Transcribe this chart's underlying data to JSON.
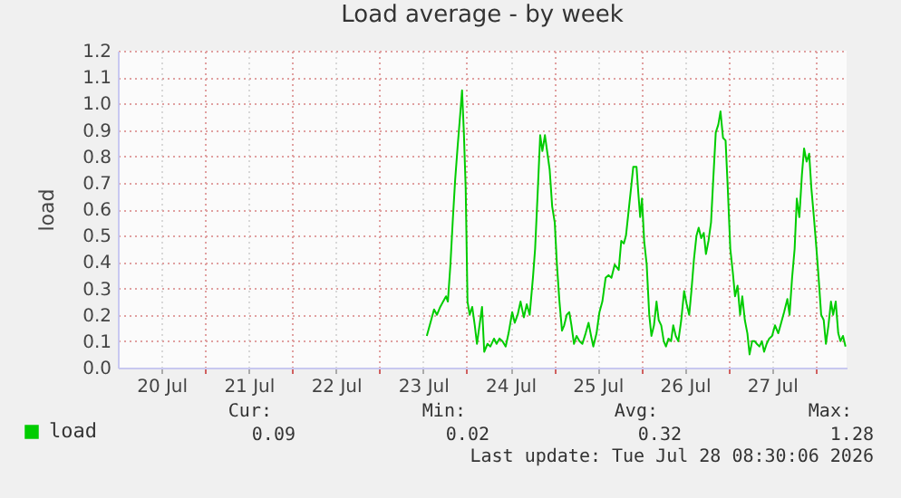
{
  "chart_data": {
    "type": "line",
    "title": "Load average - by week",
    "ylabel": "load",
    "xlim": [
      "2026-07-20T00:00",
      "2026-07-28T08:30"
    ],
    "xticks": [
      {
        "value": "2026-07-20T12:00",
        "label": "20 Jul"
      },
      {
        "value": "2026-07-21T00:00",
        "label": null
      },
      {
        "value": "2026-07-21T12:00",
        "label": "21 Jul"
      },
      {
        "value": "2026-07-22T00:00",
        "label": null
      },
      {
        "value": "2026-07-22T12:00",
        "label": "22 Jul"
      },
      {
        "value": "2026-07-23T00:00",
        "label": null
      },
      {
        "value": "2026-07-23T12:00",
        "label": "23 Jul"
      },
      {
        "value": "2026-07-24T00:00",
        "label": null
      },
      {
        "value": "2026-07-24T12:00",
        "label": "24 Jul"
      },
      {
        "value": "2026-07-25T00:00",
        "label": null
      },
      {
        "value": "2026-07-25T12:00",
        "label": "25 Jul"
      },
      {
        "value": "2026-07-26T00:00",
        "label": null
      },
      {
        "value": "2026-07-26T12:00",
        "label": "26 Jul"
      },
      {
        "value": "2026-07-27T00:00",
        "label": null
      },
      {
        "value": "2026-07-27T12:00",
        "label": "27 Jul"
      },
      {
        "value": "2026-07-28T00:00",
        "label": null
      }
    ],
    "ylim": [
      0,
      1.2
    ],
    "yticks": [
      {
        "value": 0,
        "label": "0.0"
      },
      0.1,
      0.2,
      0.3,
      0.4,
      0.5,
      0.6,
      0.7,
      0.8,
      0.9,
      {
        "value": 1,
        "label": "1.0"
      },
      1.1,
      1.2
    ],
    "grid": true,
    "legend": "bottom left",
    "marker": "none",
    "line_style": "solid",
    "series": [
      {
        "name": "load",
        "color": "#00cc00",
        "x": [
          "2026-07-23T13:00",
          "2026-07-23T14:12",
          "2026-07-23T15:00",
          "2026-07-23T15:48",
          "2026-07-23T16:42",
          "2026-07-23T17:30",
          "2026-07-23T18:18",
          "2026-07-23T18:48",
          "2026-07-23T19:30",
          "2026-07-23T20:12",
          "2026-07-23T20:48",
          "2026-07-23T21:30",
          "2026-07-23T22:12",
          "2026-07-23T22:42",
          "2026-07-23T23:12",
          "2026-07-23T23:42",
          "2026-07-24T00:12",
          "2026-07-24T00:48",
          "2026-07-24T01:30",
          "2026-07-24T02:12",
          "2026-07-24T02:48",
          "2026-07-24T03:30",
          "2026-07-24T04:12",
          "2026-07-24T04:48",
          "2026-07-24T05:42",
          "2026-07-24T06:30",
          "2026-07-24T07:30",
          "2026-07-24T08:12",
          "2026-07-24T09:00",
          "2026-07-24T09:48",
          "2026-07-24T10:42",
          "2026-07-24T11:30",
          "2026-07-24T12:30",
          "2026-07-24T13:12",
          "2026-07-24T14:00",
          "2026-07-24T14:48",
          "2026-07-24T15:42",
          "2026-07-24T16:30",
          "2026-07-24T17:18",
          "2026-07-24T18:12",
          "2026-07-24T18:48",
          "2026-07-24T19:30",
          "2026-07-24T20:12",
          "2026-07-24T20:48",
          "2026-07-24T21:30",
          "2026-07-24T22:12",
          "2026-07-24T22:48",
          "2026-07-24T23:30",
          "2026-07-25T00:12",
          "2026-07-25T00:48",
          "2026-07-25T01:30",
          "2026-07-25T02:12",
          "2026-07-25T02:48",
          "2026-07-25T03:30",
          "2026-07-25T04:12",
          "2026-07-25T04:48",
          "2026-07-25T05:30",
          "2026-07-25T06:12",
          "2026-07-25T07:00",
          "2026-07-25T07:48",
          "2026-07-25T08:42",
          "2026-07-25T09:30",
          "2026-07-25T10:12",
          "2026-07-25T10:48",
          "2026-07-25T11:42",
          "2026-07-25T12:30",
          "2026-07-25T13:18",
          "2026-07-25T14:12",
          "2026-07-25T15:00",
          "2026-07-25T15:48",
          "2026-07-25T16:42",
          "2026-07-25T17:48",
          "2026-07-25T18:30",
          "2026-07-25T19:12",
          "2026-07-25T19:48",
          "2026-07-25T20:30",
          "2026-07-25T21:12",
          "2026-07-25T21:48",
          "2026-07-25T22:42",
          "2026-07-25T23:12",
          "2026-07-25T23:42",
          "2026-07-26T00:12",
          "2026-07-26T00:48",
          "2026-07-26T01:30",
          "2026-07-26T02:12",
          "2026-07-26T02:48",
          "2026-07-26T03:30",
          "2026-07-26T04:12",
          "2026-07-26T04:48",
          "2026-07-26T05:30",
          "2026-07-26T06:12",
          "2026-07-26T06:48",
          "2026-07-26T07:30",
          "2026-07-26T08:12",
          "2026-07-26T08:48",
          "2026-07-26T09:30",
          "2026-07-26T10:12",
          "2026-07-26T11:00",
          "2026-07-26T11:48",
          "2026-07-26T12:30",
          "2026-07-26T13:12",
          "2026-07-26T13:48",
          "2026-07-26T14:30",
          "2026-07-26T15:12",
          "2026-07-26T15:48",
          "2026-07-26T16:30",
          "2026-07-26T17:12",
          "2026-07-26T17:48",
          "2026-07-26T18:30",
          "2026-07-26T19:12",
          "2026-07-26T19:48",
          "2026-07-26T20:30",
          "2026-07-26T21:12",
          "2026-07-26T21:48",
          "2026-07-26T22:30",
          "2026-07-26T23:12",
          "2026-07-26T23:48",
          "2026-07-27T00:30",
          "2026-07-27T01:12",
          "2026-07-27T01:48",
          "2026-07-27T02:30",
          "2026-07-27T03:12",
          "2026-07-27T03:48",
          "2026-07-27T04:30",
          "2026-07-27T05:12",
          "2026-07-27T05:48",
          "2026-07-27T06:30",
          "2026-07-27T07:12",
          "2026-07-27T07:48",
          "2026-07-27T08:30",
          "2026-07-27T09:12",
          "2026-07-27T09:48",
          "2026-07-27T10:30",
          "2026-07-27T11:12",
          "2026-07-27T12:00",
          "2026-07-27T12:48",
          "2026-07-27T13:42",
          "2026-07-27T14:30",
          "2026-07-27T15:18",
          "2026-07-27T16:12",
          "2026-07-27T16:48",
          "2026-07-27T17:30",
          "2026-07-27T18:12",
          "2026-07-27T18:48",
          "2026-07-27T19:30",
          "2026-07-27T20:12",
          "2026-07-27T20:48",
          "2026-07-27T21:30",
          "2026-07-27T22:12",
          "2026-07-27T22:48",
          "2026-07-27T23:30",
          "2026-07-28T00:12",
          "2026-07-28T00:48",
          "2026-07-28T01:30",
          "2026-07-28T02:12",
          "2026-07-28T02:48",
          "2026-07-28T03:30",
          "2026-07-28T04:12",
          "2026-07-28T04:48",
          "2026-07-28T05:30",
          "2026-07-28T06:12",
          "2026-07-28T06:48",
          "2026-07-28T07:30",
          "2026-07-28T08:12"
        ],
        "values": [
          0.12,
          0.18,
          0.22,
          0.2,
          0.23,
          0.25,
          0.27,
          0.25,
          0.39,
          0.57,
          0.71,
          0.84,
          0.96,
          1.05,
          0.89,
          0.68,
          0.25,
          0.2,
          0.23,
          0.16,
          0.09,
          0.16,
          0.23,
          0.06,
          0.09,
          0.08,
          0.11,
          0.09,
          0.11,
          0.1,
          0.08,
          0.13,
          0.21,
          0.17,
          0.2,
          0.25,
          0.19,
          0.24,
          0.2,
          0.34,
          0.45,
          0.66,
          0.88,
          0.82,
          0.88,
          0.81,
          0.75,
          0.61,
          0.55,
          0.39,
          0.25,
          0.14,
          0.16,
          0.2,
          0.21,
          0.16,
          0.09,
          0.12,
          0.1,
          0.09,
          0.13,
          0.17,
          0.12,
          0.08,
          0.13,
          0.21,
          0.25,
          0.34,
          0.35,
          0.34,
          0.39,
          0.37,
          0.48,
          0.47,
          0.5,
          0.59,
          0.68,
          0.76,
          0.76,
          0.66,
          0.57,
          0.64,
          0.48,
          0.39,
          0.2,
          0.12,
          0.16,
          0.25,
          0.18,
          0.16,
          0.1,
          0.08,
          0.11,
          0.1,
          0.16,
          0.12,
          0.1,
          0.18,
          0.29,
          0.24,
          0.2,
          0.29,
          0.41,
          0.5,
          0.53,
          0.49,
          0.51,
          0.43,
          0.48,
          0.55,
          0.71,
          0.89,
          0.92,
          0.97,
          0.87,
          0.86,
          0.68,
          0.45,
          0.36,
          0.27,
          0.31,
          0.2,
          0.27,
          0.18,
          0.13,
          0.05,
          0.1,
          0.1,
          0.09,
          0.08,
          0.1,
          0.06,
          0.09,
          0.11,
          0.12,
          0.16,
          0.13,
          0.17,
          0.21,
          0.26,
          0.2,
          0.34,
          0.45,
          0.64,
          0.57,
          0.73,
          0.83,
          0.78,
          0.81,
          0.68,
          0.57,
          0.45,
          0.34,
          0.2,
          0.18,
          0.09,
          0.16,
          0.25,
          0.2,
          0.25,
          0.13,
          0.1,
          0.12,
          0.08
        ]
      }
    ],
    "annotations": [
      "Cur:",
      "Min:",
      "Avg:",
      "Max:",
      "0.09",
      "0.02",
      "0.32",
      "1.28",
      "Last update: Tue Jul 28 08:30:06 2026"
    ]
  }
}
